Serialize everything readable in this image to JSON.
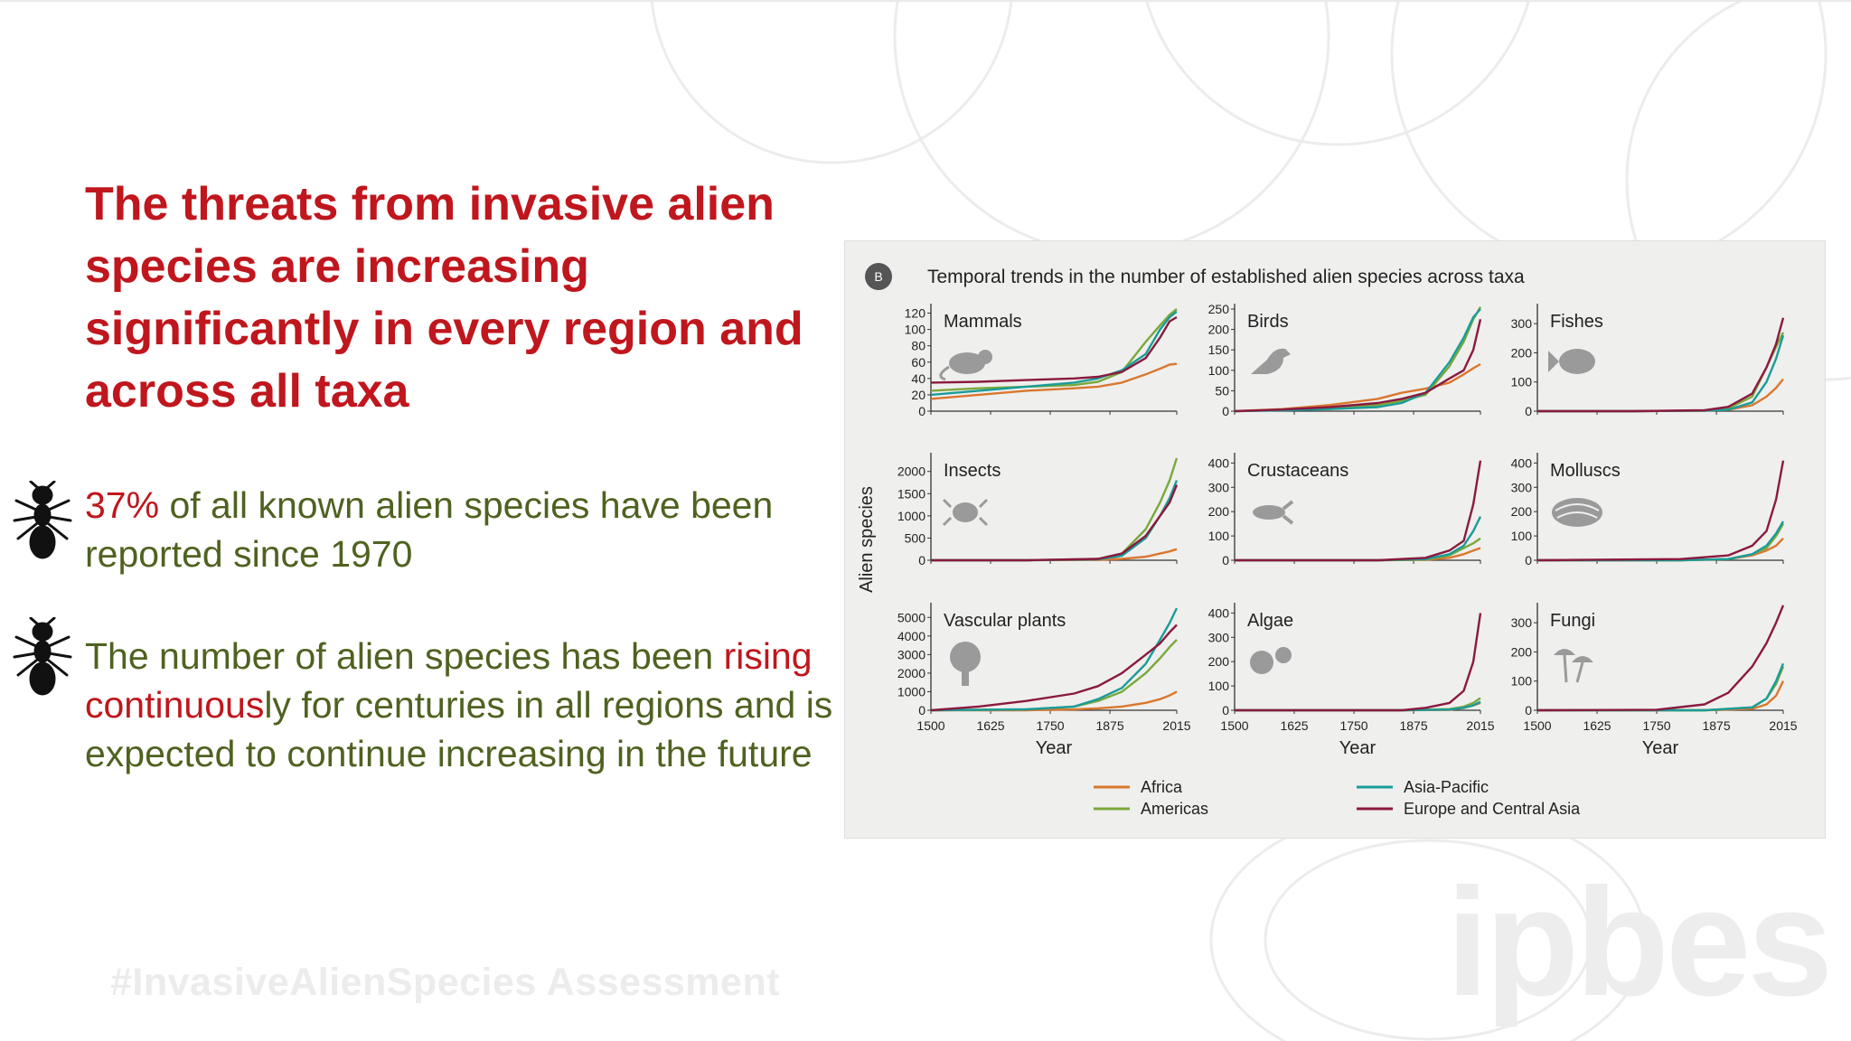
{
  "headline": "The threats from invasive alien species are increasing significantly in every region and across all taxa",
  "bullets": [
    {
      "segments": [
        {
          "text": "37%",
          "color": "#c0161d"
        },
        {
          "text": " of all known alien species have been reported since 1970",
          "color": "#4f6220"
        }
      ]
    },
    {
      "segments": [
        {
          "text": "The number of alien species has been ",
          "color": "#4f6220"
        },
        {
          "text": "rising continuous",
          "color": "#c0161d"
        },
        {
          "text": "ly for centuries in all regions and is expected to continue increasing in the future",
          "color": "#4f6220"
        }
      ]
    }
  ],
  "hashtag": "#InvasiveAlienSpecies Assessment",
  "watermark": "ipbes",
  "bullet_icon": "ant-icon",
  "colors": {
    "headline": "#c0161d",
    "body": "#4f6220",
    "Africa": "#d9772e",
    "Americas": "#7aa83c",
    "Asia-Pacific": "#1a9c99",
    "Europe and Central Asia": "#8a1a3e"
  },
  "chart_data": {
    "type": "line",
    "panel_badge": "B",
    "title": "Temporal trends in the number of established alien species across taxa",
    "xlabel": "Year",
    "ylabel": "Alien species",
    "x_ticks": [
      1500,
      1625,
      1750,
      1875,
      2015
    ],
    "legend": [
      "Africa",
      "Americas",
      "Asia-Pacific",
      "Europe and Central Asia"
    ],
    "legend_position": "bottom",
    "panels": [
      {
        "name": "Mammals",
        "icon": "rat-icon",
        "ylim": [
          0,
          125
        ],
        "yticks": [
          0,
          20,
          40,
          60,
          80,
          100,
          120
        ],
        "series": [
          {
            "name": "Africa",
            "x": [
              1500,
              1600,
              1700,
              1800,
              1850,
              1900,
              1950,
              1980,
              2000,
              2015
            ],
            "y": [
              15,
              20,
              25,
              28,
              30,
              35,
              45,
              52,
              57,
              58
            ]
          },
          {
            "name": "Americas",
            "x": [
              1500,
              1600,
              1700,
              1800,
              1850,
              1900,
              1950,
              1980,
              2000,
              2015
            ],
            "y": [
              25,
              28,
              30,
              32,
              36,
              48,
              85,
              105,
              118,
              125
            ]
          },
          {
            "name": "Asia-Pacific",
            "x": [
              1500,
              1600,
              1700,
              1800,
              1850,
              1900,
              1950,
              1980,
              2000,
              2015
            ],
            "y": [
              20,
              25,
              30,
              35,
              40,
              50,
              70,
              100,
              115,
              122
            ]
          },
          {
            "name": "Europe and Central Asia",
            "x": [
              1500,
              1600,
              1700,
              1800,
              1850,
              1900,
              1950,
              1980,
              2000,
              2015
            ],
            "y": [
              35,
              36,
              38,
              40,
              42,
              48,
              65,
              90,
              110,
              115
            ]
          }
        ]
      },
      {
        "name": "Birds",
        "icon": "bird-icon",
        "ylim": [
          0,
          250
        ],
        "yticks": [
          0,
          50,
          100,
          150,
          200,
          250
        ],
        "series": [
          {
            "name": "Africa",
            "x": [
              1500,
              1600,
              1700,
              1800,
              1850,
              1900,
              1950,
              1980,
              2000,
              2015
            ],
            "y": [
              0,
              5,
              15,
              30,
              45,
              55,
              70,
              90,
              105,
              115
            ]
          },
          {
            "name": "Americas",
            "x": [
              1500,
              1600,
              1700,
              1800,
              1850,
              1900,
              1950,
              1980,
              2000,
              2015
            ],
            "y": [
              0,
              3,
              8,
              15,
              25,
              40,
              110,
              170,
              225,
              255
            ]
          },
          {
            "name": "Asia-Pacific",
            "x": [
              1500,
              1600,
              1700,
              1800,
              1850,
              1900,
              1950,
              1980,
              2000,
              2015
            ],
            "y": [
              0,
              2,
              5,
              10,
              20,
              45,
              120,
              180,
              230,
              250
            ]
          },
          {
            "name": "Europe and Central Asia",
            "x": [
              1500,
              1600,
              1700,
              1800,
              1850,
              1900,
              1950,
              1980,
              2000,
              2015
            ],
            "y": [
              0,
              4,
              10,
              20,
              30,
              45,
              80,
              100,
              150,
              225
            ]
          }
        ]
      },
      {
        "name": "Fishes",
        "icon": "fish-icon",
        "ylim": [
          0,
          350
        ],
        "yticks": [
          0,
          100,
          200,
          300
        ],
        "series": [
          {
            "name": "Africa",
            "x": [
              1500,
              1700,
              1850,
              1900,
              1950,
              1980,
              2000,
              2015
            ],
            "y": [
              0,
              0,
              2,
              5,
              20,
              50,
              80,
              110
            ]
          },
          {
            "name": "Americas",
            "x": [
              1500,
              1700,
              1850,
              1900,
              1950,
              1980,
              2000,
              2015
            ],
            "y": [
              0,
              0,
              2,
              10,
              50,
              150,
              220,
              270
            ]
          },
          {
            "name": "Asia-Pacific",
            "x": [
              1500,
              1700,
              1850,
              1900,
              1950,
              1980,
              2000,
              2015
            ],
            "y": [
              0,
              0,
              2,
              5,
              30,
              100,
              180,
              260
            ]
          },
          {
            "name": "Europe and Central Asia",
            "x": [
              1500,
              1700,
              1850,
              1900,
              1950,
              1980,
              2000,
              2015
            ],
            "y": [
              0,
              0,
              3,
              15,
              60,
              150,
              230,
              320
            ]
          }
        ]
      },
      {
        "name": "Insects",
        "icon": "insect-icon",
        "ylim": [
          0,
          2300
        ],
        "yticks": [
          0,
          500,
          1000,
          1500,
          2000
        ],
        "series": [
          {
            "name": "Africa",
            "x": [
              1500,
              1700,
              1850,
              1900,
              1950,
              1980,
              2000,
              2015
            ],
            "y": [
              0,
              0,
              10,
              30,
              80,
              150,
              200,
              250
            ]
          },
          {
            "name": "Americas",
            "x": [
              1500,
              1700,
              1850,
              1900,
              1950,
              1980,
              2000,
              2015
            ],
            "y": [
              0,
              0,
              30,
              150,
              700,
              1300,
              1800,
              2300
            ]
          },
          {
            "name": "Asia-Pacific",
            "x": [
              1500,
              1700,
              1850,
              1900,
              1950,
              1980,
              2000,
              2015
            ],
            "y": [
              0,
              0,
              20,
              100,
              500,
              1000,
              1400,
              1800
            ]
          },
          {
            "name": "Europe and Central Asia",
            "x": [
              1500,
              1700,
              1850,
              1900,
              1950,
              1980,
              2000,
              2015
            ],
            "y": [
              0,
              0,
              30,
              150,
              550,
              1000,
              1300,
              1700
            ]
          }
        ]
      },
      {
        "name": "Crustaceans",
        "icon": "crayfish-icon",
        "ylim": [
          0,
          420
        ],
        "yticks": [
          0,
          100,
          200,
          300,
          400
        ],
        "series": [
          {
            "name": "Africa",
            "x": [
              1500,
              1800,
              1900,
              1950,
              1980,
              2000,
              2015
            ],
            "y": [
              0,
              0,
              2,
              10,
              25,
              40,
              50
            ]
          },
          {
            "name": "Americas",
            "x": [
              1500,
              1800,
              1900,
              1950,
              1980,
              2000,
              2015
            ],
            "y": [
              0,
              0,
              3,
              20,
              50,
              70,
              90
            ]
          },
          {
            "name": "Asia-Pacific",
            "x": [
              1500,
              1800,
              1900,
              1950,
              1980,
              2000,
              2015
            ],
            "y": [
              0,
              0,
              5,
              25,
              60,
              120,
              180
            ]
          },
          {
            "name": "Europe and Central Asia",
            "x": [
              1500,
              1800,
              1900,
              1950,
              1980,
              2000,
              2015
            ],
            "y": [
              0,
              0,
              10,
              40,
              80,
              230,
              410
            ]
          }
        ]
      },
      {
        "name": "Molluscs",
        "icon": "mollusc-icon",
        "ylim": [
          0,
          420
        ],
        "yticks": [
          0,
          100,
          200,
          300,
          400
        ],
        "series": [
          {
            "name": "Africa",
            "x": [
              1500,
              1800,
              1900,
              1950,
              1980,
              2000,
              2015
            ],
            "y": [
              0,
              0,
              5,
              20,
              40,
              60,
              90
            ]
          },
          {
            "name": "Americas",
            "x": [
              1500,
              1800,
              1900,
              1950,
              1980,
              2000,
              2015
            ],
            "y": [
              0,
              0,
              5,
              25,
              50,
              100,
              150
            ]
          },
          {
            "name": "Asia-Pacific",
            "x": [
              1500,
              1800,
              1900,
              1950,
              1980,
              2000,
              2015
            ],
            "y": [
              0,
              0,
              5,
              25,
              60,
              110,
              160
            ]
          },
          {
            "name": "Europe and Central Asia",
            "x": [
              1500,
              1800,
              1900,
              1950,
              1980,
              2000,
              2015
            ],
            "y": [
              0,
              5,
              20,
              60,
              120,
              250,
              410
            ]
          }
        ]
      },
      {
        "name": "Vascular plants",
        "icon": "tree-icon",
        "ylim": [
          0,
          5500
        ],
        "yticks": [
          0,
          1000,
          2000,
          3000,
          4000,
          5000
        ],
        "series": [
          {
            "name": "Africa",
            "x": [
              1500,
              1700,
              1800,
              1850,
              1900,
              1950,
              1980,
              2000,
              2015
            ],
            "y": [
              0,
              0,
              50,
              100,
              200,
              400,
              600,
              800,
              1000
            ]
          },
          {
            "name": "Americas",
            "x": [
              1500,
              1700,
              1800,
              1850,
              1900,
              1950,
              1980,
              2000,
              2015
            ],
            "y": [
              0,
              50,
              200,
              500,
              1000,
              2000,
              2800,
              3400,
              3800
            ]
          },
          {
            "name": "Asia-Pacific",
            "x": [
              1500,
              1700,
              1800,
              1850,
              1900,
              1950,
              1980,
              2000,
              2015
            ],
            "y": [
              0,
              50,
              200,
              600,
              1200,
              2500,
              3800,
              4700,
              5500
            ]
          },
          {
            "name": "Europe and Central Asia",
            "x": [
              1500,
              1600,
              1700,
              1800,
              1850,
              1900,
              1950,
              1980,
              2000,
              2015
            ],
            "y": [
              0,
              200,
              500,
              900,
              1300,
              2000,
              3000,
              3600,
              4200,
              4600
            ]
          }
        ]
      },
      {
        "name": "Algae",
        "icon": "algae-icon",
        "ylim": [
          0,
          420
        ],
        "yticks": [
          0,
          100,
          200,
          300,
          400
        ],
        "series": [
          {
            "name": "Africa",
            "x": [
              1500,
              1850,
              1950,
              1980,
              2000,
              2015
            ],
            "y": [
              0,
              0,
              2,
              10,
              20,
              30
            ]
          },
          {
            "name": "Americas",
            "x": [
              1500,
              1850,
              1950,
              1980,
              2000,
              2015
            ],
            "y": [
              0,
              0,
              5,
              15,
              30,
              50
            ]
          },
          {
            "name": "Asia-Pacific",
            "x": [
              1500,
              1850,
              1950,
              1980,
              2000,
              2015
            ],
            "y": [
              0,
              0,
              3,
              10,
              20,
              35
            ]
          },
          {
            "name": "Europe and Central Asia",
            "x": [
              1500,
              1850,
              1900,
              1950,
              1980,
              2000,
              2015
            ],
            "y": [
              0,
              0,
              10,
              30,
              80,
              200,
              400
            ]
          }
        ]
      },
      {
        "name": "Fungi",
        "icon": "mushroom-icon",
        "ylim": [
          0,
          350
        ],
        "yticks": [
          0,
          100,
          200,
          300
        ],
        "series": [
          {
            "name": "Africa",
            "x": [
              1500,
              1850,
              1950,
              1980,
              2000,
              2015
            ],
            "y": [
              0,
              0,
              5,
              20,
              50,
              100
            ]
          },
          {
            "name": "Americas",
            "x": [
              1500,
              1850,
              1950,
              1980,
              2000,
              2015
            ],
            "y": [
              0,
              0,
              10,
              40,
              90,
              150
            ]
          },
          {
            "name": "Asia-Pacific",
            "x": [
              1500,
              1850,
              1950,
              1980,
              2000,
              2015
            ],
            "y": [
              0,
              0,
              10,
              40,
              100,
              160
            ]
          },
          {
            "name": "Europe and Central Asia",
            "x": [
              1500,
              1750,
              1850,
              1900,
              1950,
              1980,
              2000,
              2015
            ],
            "y": [
              0,
              2,
              20,
              60,
              150,
              230,
              300,
              360
            ]
          }
        ]
      }
    ]
  }
}
